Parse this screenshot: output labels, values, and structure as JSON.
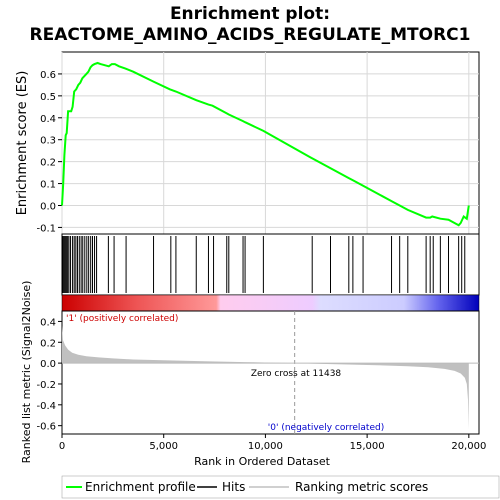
{
  "title_line1": "Enrichment plot:",
  "title_line2": "REACTOME_AMINO_ACIDS_REGULATE_MTORC1",
  "colors": {
    "es_line": "#00ff00",
    "hits": "#000000",
    "metric_fill": "#c0c0c0",
    "pos_label": "#cc0000",
    "neg_label": "#0000cc",
    "zero_line": "#999999"
  },
  "legend": {
    "es": "Enrichment profile",
    "hits": "Hits",
    "metric": "Ranking metric scores"
  },
  "chart_data": [
    {
      "type": "line",
      "name": "enrichment",
      "ylabel": "Enrichment score (ES)",
      "ylim": [
        -0.13,
        0.7
      ],
      "xlim": [
        0,
        20500
      ],
      "yticks": [
        "-0.1",
        "0.0",
        "0.1",
        "0.2",
        "0.3",
        "0.4",
        "0.5",
        "0.6"
      ],
      "ytick_values": [
        -0.1,
        0.0,
        0.1,
        0.2,
        0.3,
        0.4,
        0.5,
        0.6
      ],
      "grid": true,
      "series": [
        {
          "x": [
            0,
            60,
            120,
            180,
            230,
            300,
            450,
            520,
            600,
            700,
            800,
            900,
            1000,
            1100,
            1200,
            1300,
            1400,
            1500,
            1600,
            1750,
            1900,
            2100,
            2300,
            2450,
            2600,
            2800,
            3100,
            3500,
            4500,
            5300,
            5600,
            6600,
            7200,
            7400,
            8100,
            8200,
            8900,
            9000,
            9900,
            12200,
            13100,
            14100,
            14300,
            14800,
            16200,
            16600,
            17000,
            17900,
            18100,
            18200,
            18600,
            19000,
            19500,
            19600,
            19750,
            19900,
            20000
          ],
          "y": [
            0.0,
            0.1,
            0.23,
            0.32,
            0.33,
            0.43,
            0.43,
            0.45,
            0.52,
            0.53,
            0.55,
            0.56,
            0.58,
            0.59,
            0.6,
            0.61,
            0.63,
            0.64,
            0.645,
            0.65,
            0.645,
            0.64,
            0.635,
            0.645,
            0.645,
            0.635,
            0.625,
            0.61,
            0.565,
            0.53,
            0.52,
            0.48,
            0.46,
            0.455,
            0.42,
            0.415,
            0.385,
            0.38,
            0.34,
            0.22,
            0.175,
            0.125,
            0.115,
            0.09,
            0.02,
            0.0,
            -0.02,
            -0.055,
            -0.055,
            -0.05,
            -0.06,
            -0.065,
            -0.09,
            -0.08,
            -0.05,
            -0.06,
            0.0
          ]
        }
      ]
    },
    {
      "type": "scatter",
      "name": "hits",
      "xlim": [
        0,
        20500
      ],
      "x": [
        30,
        80,
        130,
        180,
        230,
        280,
        340,
        420,
        520,
        600,
        680,
        760,
        850,
        940,
        1020,
        1120,
        1220,
        1310,
        1410,
        1500,
        1600,
        1700,
        2280,
        2560,
        3150,
        4500,
        5350,
        5600,
        6600,
        7200,
        7450,
        8100,
        8200,
        8900,
        9000,
        9900,
        12300,
        13200,
        14100,
        14300,
        14800,
        16200,
        16600,
        17000,
        17900,
        18100,
        18250,
        18600,
        19000,
        19500,
        19650,
        19800
      ]
    },
    {
      "type": "area",
      "name": "ranking_metric",
      "ylabel": "Ranked list metric (Signal2Noise)",
      "xlabel": "Rank in Ordered Dataset",
      "ylim": [
        -0.68,
        0.5
      ],
      "xlim": [
        0,
        20500
      ],
      "yticks": [
        "-0.6",
        "-0.4",
        "-0.2",
        "0.0",
        "0.2",
        "0.4"
      ],
      "ytick_values": [
        -0.6,
        -0.4,
        -0.2,
        0.0,
        0.2,
        0.4
      ],
      "xticks": [
        "0",
        "5,000",
        "10,000",
        "15,000",
        "20,000"
      ],
      "xtick_values": [
        0,
        5000,
        10000,
        15000,
        20000
      ],
      "zero_cross": 11438,
      "zero_cross_label": "Zero cross at 11438",
      "pos_label": "'1' (positively correlated)",
      "neg_label": "'0' (negatively correlated)",
      "x": [
        0,
        50,
        150,
        300,
        500,
        800,
        1200,
        1800,
        2500,
        3500,
        5000,
        7000,
        9000,
        10500,
        11438,
        12500,
        14000,
        15500,
        17000,
        18000,
        18800,
        19300,
        19600,
        19800,
        19900,
        19960,
        20000
      ],
      "values": [
        0.36,
        0.22,
        0.17,
        0.13,
        0.1,
        0.08,
        0.065,
        0.055,
        0.045,
        0.035,
        0.027,
        0.018,
        0.01,
        0.004,
        0.0,
        -0.006,
        -0.013,
        -0.02,
        -0.03,
        -0.04,
        -0.055,
        -0.075,
        -0.1,
        -0.14,
        -0.2,
        -0.35,
        -0.64
      ]
    }
  ]
}
